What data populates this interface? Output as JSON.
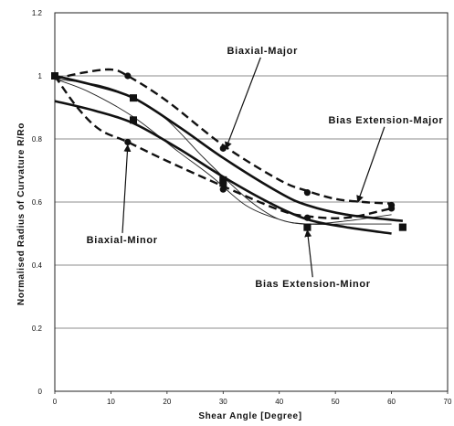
{
  "chart_data": {
    "type": "line",
    "title": "",
    "xlabel": "Shear Angle [Degree]",
    "ylabel": "Normalised Radius of Curvature R/Ro",
    "xlim": [
      0,
      70
    ],
    "ylim": [
      0,
      1.2
    ],
    "x_ticks": [
      "0",
      "10",
      "20",
      "30",
      "40",
      "50",
      "60",
      "70"
    ],
    "y_ticks": [
      "0",
      "0.2",
      "0.4",
      "0.6",
      "0.8",
      "1",
      "1.2"
    ],
    "grid": {
      "horizontal": true,
      "vertical": false
    },
    "series": [
      {
        "name": "Biaxial-Major",
        "style": "dashed",
        "marker": "circle",
        "color": "#111111",
        "points": [
          [
            0,
            1.0
          ],
          [
            13,
            1.0
          ],
          [
            30,
            0.77
          ],
          [
            45,
            0.63
          ],
          [
            60,
            0.59
          ]
        ],
        "fit": [
          [
            0,
            0.99
          ],
          [
            5,
            1.01
          ],
          [
            10,
            1.02
          ],
          [
            13,
            1.0
          ],
          [
            20,
            0.92
          ],
          [
            30,
            0.78
          ],
          [
            40,
            0.67
          ],
          [
            45,
            0.635
          ],
          [
            50,
            0.61
          ],
          [
            55,
            0.6
          ],
          [
            60,
            0.595
          ]
        ]
      },
      {
        "name": "Biaxial-Minor",
        "style": "dashed",
        "marker": "circle",
        "color": "#111111",
        "points": [
          [
            0,
            1.0
          ],
          [
            13,
            0.79
          ],
          [
            30,
            0.64
          ],
          [
            45,
            0.55
          ],
          [
            60,
            0.58
          ]
        ],
        "fit": [
          [
            0,
            1.0
          ],
          [
            4,
            0.9
          ],
          [
            8,
            0.83
          ],
          [
            13,
            0.79
          ],
          [
            20,
            0.73
          ],
          [
            30,
            0.65
          ],
          [
            40,
            0.575
          ],
          [
            45,
            0.555
          ],
          [
            52,
            0.55
          ],
          [
            60,
            0.58
          ]
        ]
      },
      {
        "name": "Bias Extension-Major",
        "style": "solid",
        "marker": "square",
        "color": "#111111",
        "points": [
          [
            0,
            1.0
          ],
          [
            14,
            0.93
          ],
          [
            30,
            0.67
          ],
          [
            45,
            0.52
          ],
          [
            62,
            0.52
          ]
        ],
        "fit": [
          [
            0,
            1.0
          ],
          [
            7,
            0.97
          ],
          [
            14,
            0.93
          ],
          [
            22,
            0.84
          ],
          [
            30,
            0.74
          ],
          [
            40,
            0.63
          ],
          [
            45,
            0.59
          ],
          [
            52,
            0.56
          ],
          [
            62,
            0.54
          ]
        ]
      },
      {
        "name": "Bias Extension-Minor",
        "style": "solid",
        "marker": "square",
        "color": "#111111",
        "points": [
          [
            0,
            1.0
          ],
          [
            14,
            0.86
          ],
          [
            30,
            0.66
          ],
          [
            45,
            0.52
          ],
          [
            62,
            0.52
          ]
        ],
        "fit": [
          [
            0,
            0.92
          ],
          [
            7,
            0.89
          ],
          [
            14,
            0.85
          ],
          [
            22,
            0.77
          ],
          [
            30,
            0.68
          ],
          [
            38,
            0.6
          ],
          [
            45,
            0.545
          ],
          [
            52,
            0.52
          ],
          [
            60,
            0.5
          ]
        ]
      }
    ],
    "extra_curves": [
      [
        [
          0,
          0.99
        ],
        [
          8,
          0.97
        ],
        [
          14,
          0.93
        ],
        [
          20,
          0.86
        ],
        [
          26,
          0.75
        ],
        [
          30,
          0.68
        ],
        [
          35,
          0.6
        ],
        [
          40,
          0.545
        ],
        [
          45,
          0.53
        ],
        [
          52,
          0.53
        ],
        [
          60,
          0.53
        ]
      ],
      [
        [
          0,
          0.99
        ],
        [
          6,
          0.95
        ],
        [
          14,
          0.87
        ],
        [
          22,
          0.76
        ],
        [
          28,
          0.68
        ],
        [
          34,
          0.59
        ],
        [
          40,
          0.545
        ],
        [
          45,
          0.53
        ],
        [
          52,
          0.54
        ],
        [
          60,
          0.56
        ]
      ]
    ],
    "annotations": [
      {
        "text": "Biaxial-Major",
        "anchor": [
          37,
          1.07
        ],
        "arrow_to": [
          30.5,
          0.77
        ]
      },
      {
        "text": "Bias Extension-Major",
        "anchor": [
          59,
          0.85
        ],
        "arrow_to": [
          54,
          0.6
        ]
      },
      {
        "text": "Biaxial-Minor",
        "anchor": [
          12,
          0.47
        ],
        "arrow_to": [
          13,
          0.78
        ]
      },
      {
        "text": "Bias Extension-Minor",
        "anchor": [
          46,
          0.33
        ],
        "arrow_to": [
          45,
          0.51
        ]
      }
    ]
  }
}
